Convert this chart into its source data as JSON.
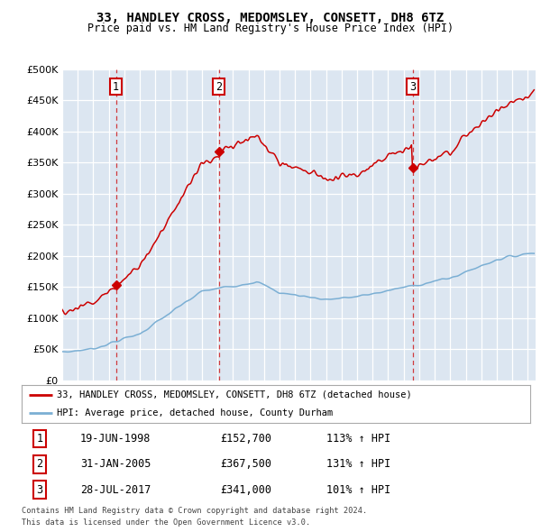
{
  "title": "33, HANDLEY CROSS, MEDOMSLEY, CONSETT, DH8 6TZ",
  "subtitle": "Price paid vs. HM Land Registry's House Price Index (HPI)",
  "legend_line1": "33, HANDLEY CROSS, MEDOMSLEY, CONSETT, DH8 6TZ (detached house)",
  "legend_line2": "HPI: Average price, detached house, County Durham",
  "footer1": "Contains HM Land Registry data © Crown copyright and database right 2024.",
  "footer2": "This data is licensed under the Open Government Licence v3.0.",
  "sale_markers": [
    {
      "num": 1,
      "date_label": "19-JUN-1998",
      "price": 152700,
      "price_label": "£152,700",
      "hpi_label": "113% ↑ HPI",
      "x_year": 1998.46
    },
    {
      "num": 2,
      "date_label": "31-JAN-2005",
      "price": 367500,
      "price_label": "£367,500",
      "hpi_label": "131% ↑ HPI",
      "x_year": 2005.08
    },
    {
      "num": 3,
      "date_label": "28-JUL-2017",
      "price": 341000,
      "price_label": "£341,000",
      "hpi_label": "101% ↑ HPI",
      "x_year": 2017.57
    }
  ],
  "red_line_color": "#cc0000",
  "blue_line_color": "#7bafd4",
  "marker_box_color": "#cc0000",
  "background_color": "#dce6f1",
  "ylim": [
    0,
    500000
  ],
  "yticks": [
    0,
    50000,
    100000,
    150000,
    200000,
    250000,
    300000,
    350000,
    400000,
    450000,
    500000
  ],
  "xlim_start": 1995.0,
  "xlim_end": 2025.5
}
